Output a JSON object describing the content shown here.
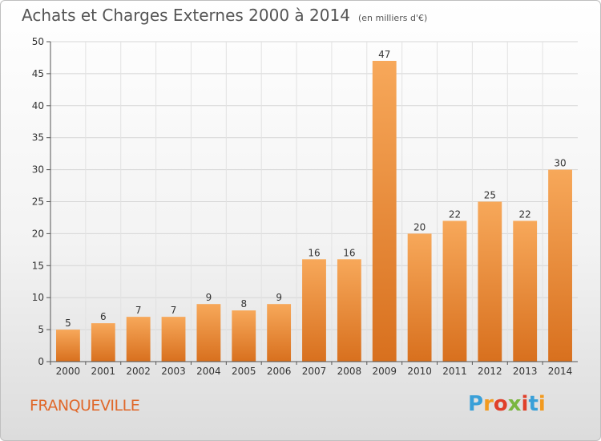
{
  "header": {
    "title": "Achats et Charges Externes 2000 à 2014",
    "unit": "(en milliers d'€)"
  },
  "footer": {
    "place": "FRANQUEVILLE",
    "logo_letters": [
      "P",
      "r",
      "o",
      "x",
      "i",
      "t",
      "i"
    ],
    "logo_colors": [
      "#3aa0d8",
      "#f29a1f",
      "#e0402a",
      "#7ab640",
      "#e0402a",
      "#3aa0d8",
      "#f29a1f"
    ]
  },
  "chart_data": {
    "type": "bar",
    "title": "Achats et Charges Externes 2000 à 2014",
    "subtitle": "(en milliers d'€)",
    "categories": [
      "2000",
      "2001",
      "2002",
      "2003",
      "2004",
      "2005",
      "2006",
      "2007",
      "2008",
      "2009",
      "2010",
      "2011",
      "2012",
      "2013",
      "2014"
    ],
    "values": [
      5,
      6,
      7,
      7,
      9,
      8,
      9,
      16,
      16,
      47,
      20,
      22,
      25,
      22,
      30
    ],
    "value_labels": [
      "5",
      "6",
      "7",
      "7",
      "9",
      "8",
      "9",
      "16",
      "16",
      "47",
      "20",
      "22",
      "25",
      "22",
      "30"
    ],
    "ylim": [
      0,
      50
    ],
    "yticks": [
      0,
      5,
      10,
      15,
      20,
      25,
      30,
      35,
      40,
      45,
      50
    ],
    "ytick_labels": [
      "0",
      "5",
      "10",
      "15",
      "20",
      "25",
      "30",
      "35",
      "40",
      "45",
      "50"
    ],
    "grid": true,
    "legend": "none",
    "bar_color_top": "#f7a85a",
    "bar_color_bottom": "#d8701e"
  }
}
